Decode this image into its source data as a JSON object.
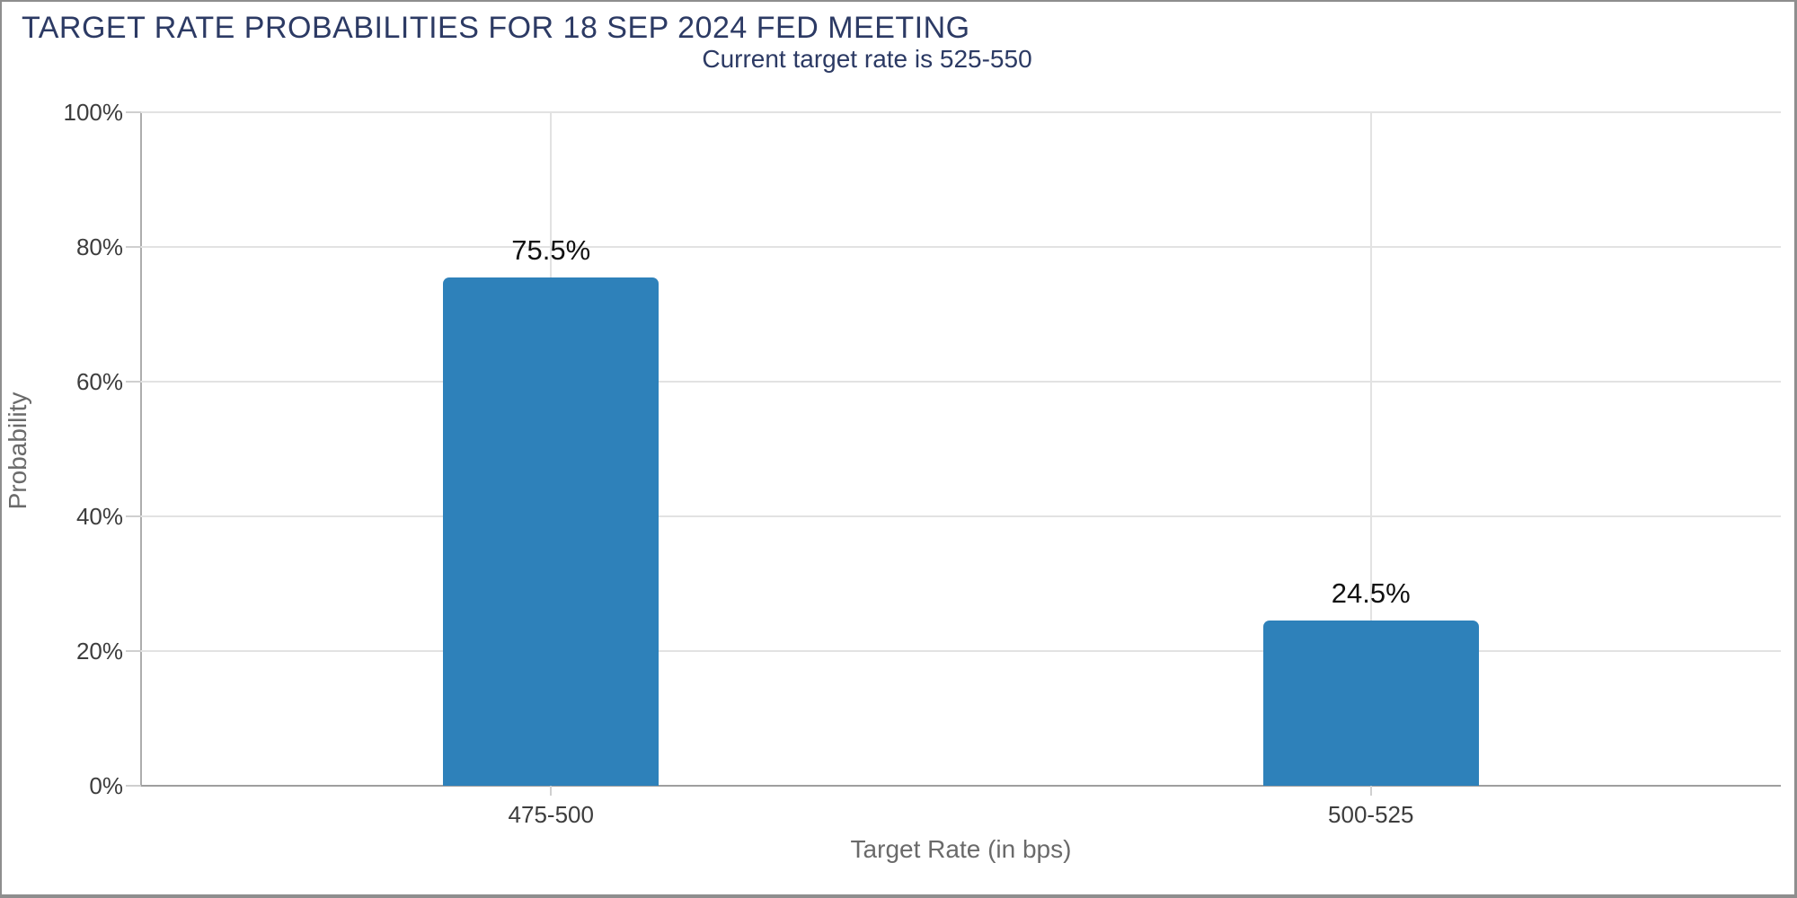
{
  "window": {
    "background": "#ffffff",
    "border_color": "#8e8e8e"
  },
  "header": {
    "title": "TARGET RATE PROBABILITIES FOR 18 SEP 2024 FED MEETING",
    "subtitle": "Current target rate is 525-550"
  },
  "chart_data": {
    "type": "bar",
    "title": "TARGET RATE PROBABILITIES FOR 18 SEP 2024 FED MEETING",
    "subtitle": "Current target rate is 525-550",
    "categories": [
      "475-500",
      "500-525"
    ],
    "values": [
      75.5,
      24.5
    ],
    "value_labels": [
      "75.5%",
      "24.5%"
    ],
    "xlabel": "Target Rate (in bps)",
    "ylabel": "Probability",
    "ylim": [
      0,
      100
    ],
    "ytick_values": [
      0,
      20,
      40,
      60,
      80,
      100
    ],
    "ytick_labels": [
      "0%",
      "20%",
      "40%",
      "60%",
      "80%",
      "100%"
    ],
    "grid": true,
    "legend": "none",
    "bar_color": "#2e81ba",
    "colors": {
      "title": "#2c3a64",
      "subtitle": "#2c3a64",
      "tick_labels": "#3d3d3d",
      "axis_titles": "#6a6a6a",
      "value_labels": "#111111",
      "gridlines": "#e2e2e2",
      "axis_lines": "#9f9f9f"
    }
  }
}
